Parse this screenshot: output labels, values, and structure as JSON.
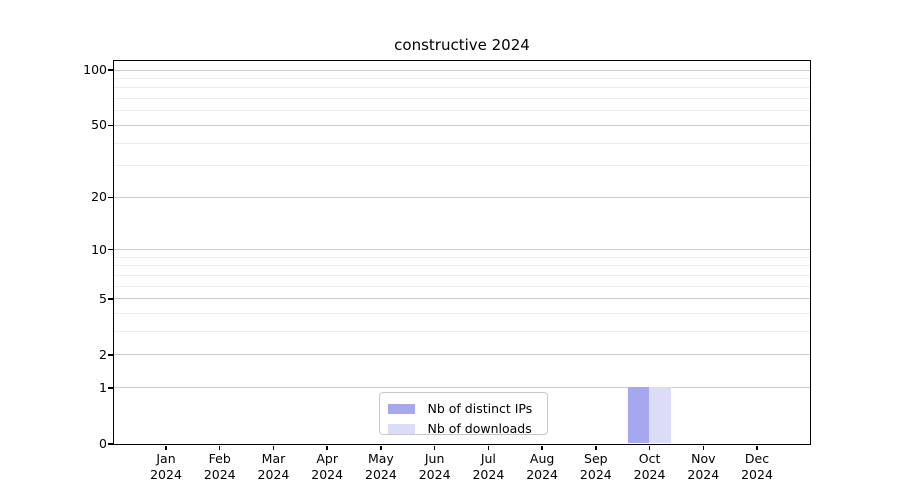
{
  "chart_data": {
    "type": "bar",
    "title": "constructive 2024",
    "categories": [
      "Jan",
      "Feb",
      "Mar",
      "Apr",
      "May",
      "Jun",
      "Jul",
      "Aug",
      "Sep",
      "Oct",
      "Nov",
      "Dec"
    ],
    "category_year": "2024",
    "series": [
      {
        "name": "Nb of distinct IPs",
        "color": "#a7a7f0",
        "values": [
          0,
          0,
          0,
          0,
          0,
          0,
          0,
          0,
          0,
          1,
          0,
          0
        ]
      },
      {
        "name": "Nb of downloads",
        "color": "#dcdcf8",
        "values": [
          0,
          0,
          0,
          0,
          0,
          0,
          0,
          0,
          0,
          1,
          0,
          0
        ]
      }
    ],
    "yscale": "log1p",
    "ylim": [
      0,
      112
    ],
    "yticks": [
      0,
      1,
      2,
      5,
      10,
      20,
      50,
      100
    ],
    "yticks_minor": [
      3,
      4,
      6,
      7,
      8,
      9,
      30,
      40,
      60,
      70,
      80,
      90
    ],
    "grid": "horizontal",
    "legend_position": "lower center",
    "colors": {
      "major_grid": "#cdcdcd",
      "minor_grid": "#ececec",
      "axis": "#000000",
      "text": "#000000"
    }
  }
}
